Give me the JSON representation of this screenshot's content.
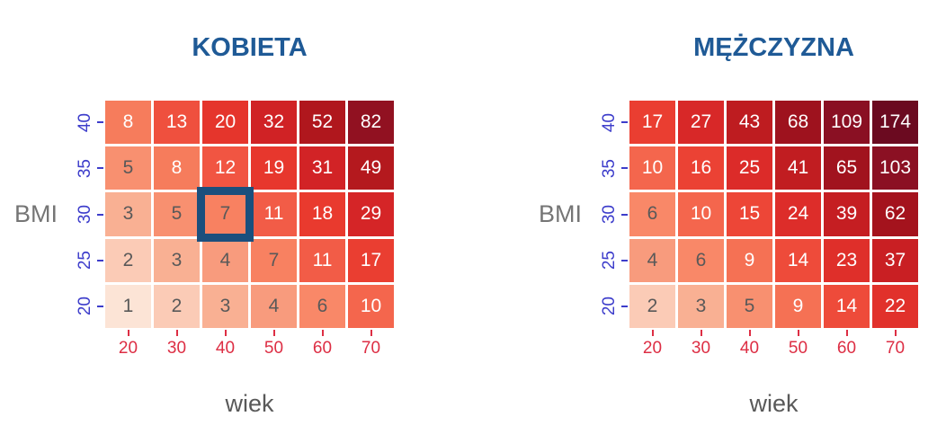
{
  "figure": {
    "background": "#ffffff"
  },
  "colors": {
    "title": "#1f5a96",
    "y_tick": "#3d3dcb",
    "x_tick": "#dd2e44",
    "y_axis_title": "#757575",
    "x_axis_title": "#595959",
    "cell_text_dark": "#595959",
    "cell_text_light": "#ffffff",
    "cell_gap": "#ffffff",
    "highlight_border": "#1b4f7d",
    "scale_normalization": "log",
    "white_text_threshold": 0.4,
    "scale_stops": [
      [
        0.0,
        "#fce4d6"
      ],
      [
        0.13,
        "#fbccb8"
      ],
      [
        0.22,
        "#f9ae90"
      ],
      [
        0.28,
        "#f89778"
      ],
      [
        0.35,
        "#f98767"
      ],
      [
        0.41,
        "#f67a5a"
      ],
      [
        0.47,
        "#f25945"
      ],
      [
        0.56,
        "#e93a2e"
      ],
      [
        0.65,
        "#d62527"
      ],
      [
        0.7,
        "#c91f23"
      ],
      [
        0.76,
        "#b2181d"
      ],
      [
        0.8,
        "#a4131d"
      ],
      [
        0.86,
        "#8f1121"
      ],
      [
        0.91,
        "#8a1023"
      ],
      [
        1.0,
        "#6b0a20"
      ]
    ]
  },
  "chart_data": [
    {
      "type": "heatmap",
      "title": "KOBIETA",
      "xlabel": "wiek",
      "ylabel": "BMI",
      "x": [
        20,
        30,
        40,
        50,
        60,
        70
      ],
      "y": [
        40,
        35,
        30,
        25,
        20
      ],
      "values": [
        [
          8,
          13,
          20,
          32,
          52,
          82
        ],
        [
          5,
          8,
          12,
          19,
          31,
          49
        ],
        [
          3,
          5,
          7,
          11,
          18,
          29
        ],
        [
          2,
          3,
          4,
          7,
          11,
          17
        ],
        [
          1,
          2,
          3,
          4,
          6,
          10
        ]
      ],
      "highlighted_cell": {
        "row_index": 2,
        "col_index": 2,
        "y": 30,
        "x": 40,
        "value": 7
      }
    },
    {
      "type": "heatmap",
      "title": "MĘŻCZYZNA",
      "xlabel": "wiek",
      "ylabel": "BMI",
      "x": [
        20,
        30,
        40,
        50,
        60,
        70
      ],
      "y": [
        40,
        35,
        30,
        25,
        20
      ],
      "values": [
        [
          17,
          27,
          43,
          68,
          109,
          174
        ],
        [
          10,
          16,
          25,
          41,
          65,
          103
        ],
        [
          6,
          10,
          15,
          24,
          39,
          62
        ],
        [
          4,
          6,
          9,
          14,
          23,
          37
        ],
        [
          2,
          3,
          5,
          9,
          14,
          22
        ]
      ],
      "highlighted_cell": null
    }
  ]
}
